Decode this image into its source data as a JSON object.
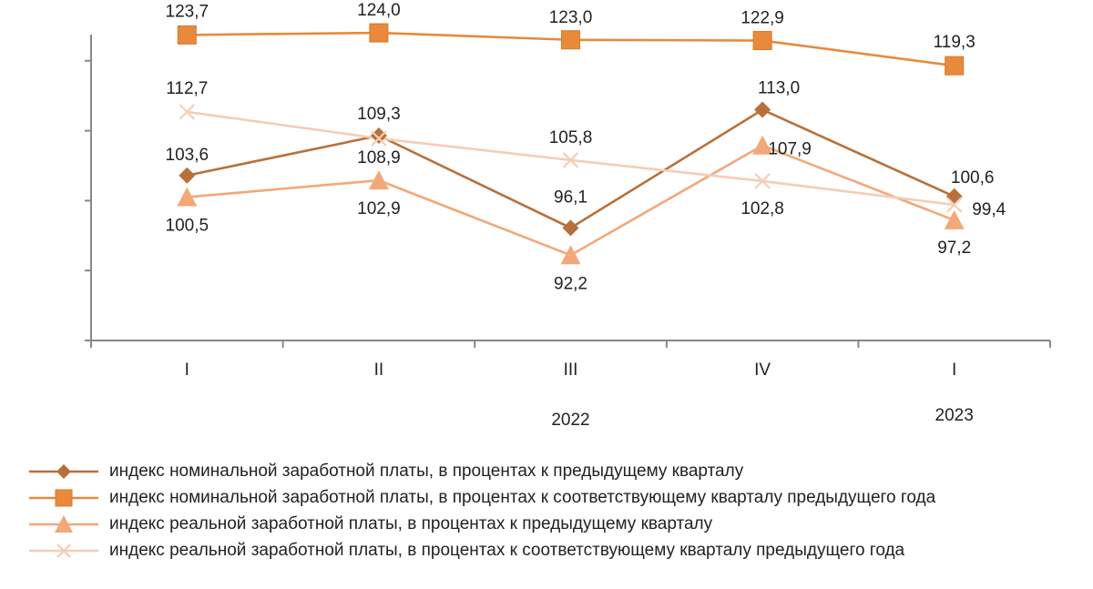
{
  "chart_data": {
    "type": "line",
    "categories": [
      "I",
      "II",
      "III",
      "IV",
      "I"
    ],
    "group_labels": [
      {
        "label": "2022",
        "categories": [
          0,
          1,
          2,
          3
        ]
      },
      {
        "label": "2023",
        "categories": [
          4
        ]
      }
    ],
    "value_labels": [
      "123,7",
      "124,0",
      "123,0",
      "122,9",
      "119,3",
      "112,7",
      "108,9",
      "105,8",
      "102,8",
      "99,4",
      "103,6",
      "109,3",
      "96,1",
      "113,0",
      "100,6",
      "100,5",
      "102,9",
      "92,2",
      "107,9",
      "97,2"
    ],
    "series": [
      {
        "name": "индекс номинальной заработной платы, в процентах к предыдущему кварталу",
        "values": [
          103.6,
          109.3,
          96.1,
          113.0,
          100.6
        ],
        "labels": [
          "103,6",
          "109,3",
          "96,1",
          "113,0",
          "100,6"
        ],
        "color": "#b8703a",
        "marker": "diamond"
      },
      {
        "name": "индекс номинальной заработной платы, в процентах к соответствующему кварталу предыдущего года",
        "values": [
          123.7,
          124.0,
          123.0,
          122.9,
          119.3
        ],
        "labels": [
          "123,7",
          "124,0",
          "123,0",
          "122,9",
          "119,3"
        ],
        "color": "#e8893c",
        "marker": "square"
      },
      {
        "name": "индекс реальной заработной платы, в процентах к предыдущему кварталу",
        "values": [
          100.5,
          102.9,
          92.2,
          107.9,
          97.2
        ],
        "labels": [
          "100,5",
          "102,9",
          "92,2",
          "107,9",
          "97,2"
        ],
        "color": "#f2a878",
        "marker": "triangle"
      },
      {
        "name": "индекс реальной заработной платы, в процентах к соответствующему кварталу предыдущего года",
        "values": [
          112.7,
          108.9,
          105.8,
          102.8,
          99.4
        ],
        "labels": [
          "112,7",
          "108,9",
          "105,8",
          "102,8",
          "99,4"
        ],
        "color": "#f5cdb6",
        "marker": "x"
      }
    ],
    "ylim": [
      80,
      130
    ],
    "y_ticks": [
      80,
      90,
      100,
      110,
      120,
      130
    ],
    "y_tick_labels_shown": false,
    "grid": false,
    "legend_position": "bottom"
  }
}
